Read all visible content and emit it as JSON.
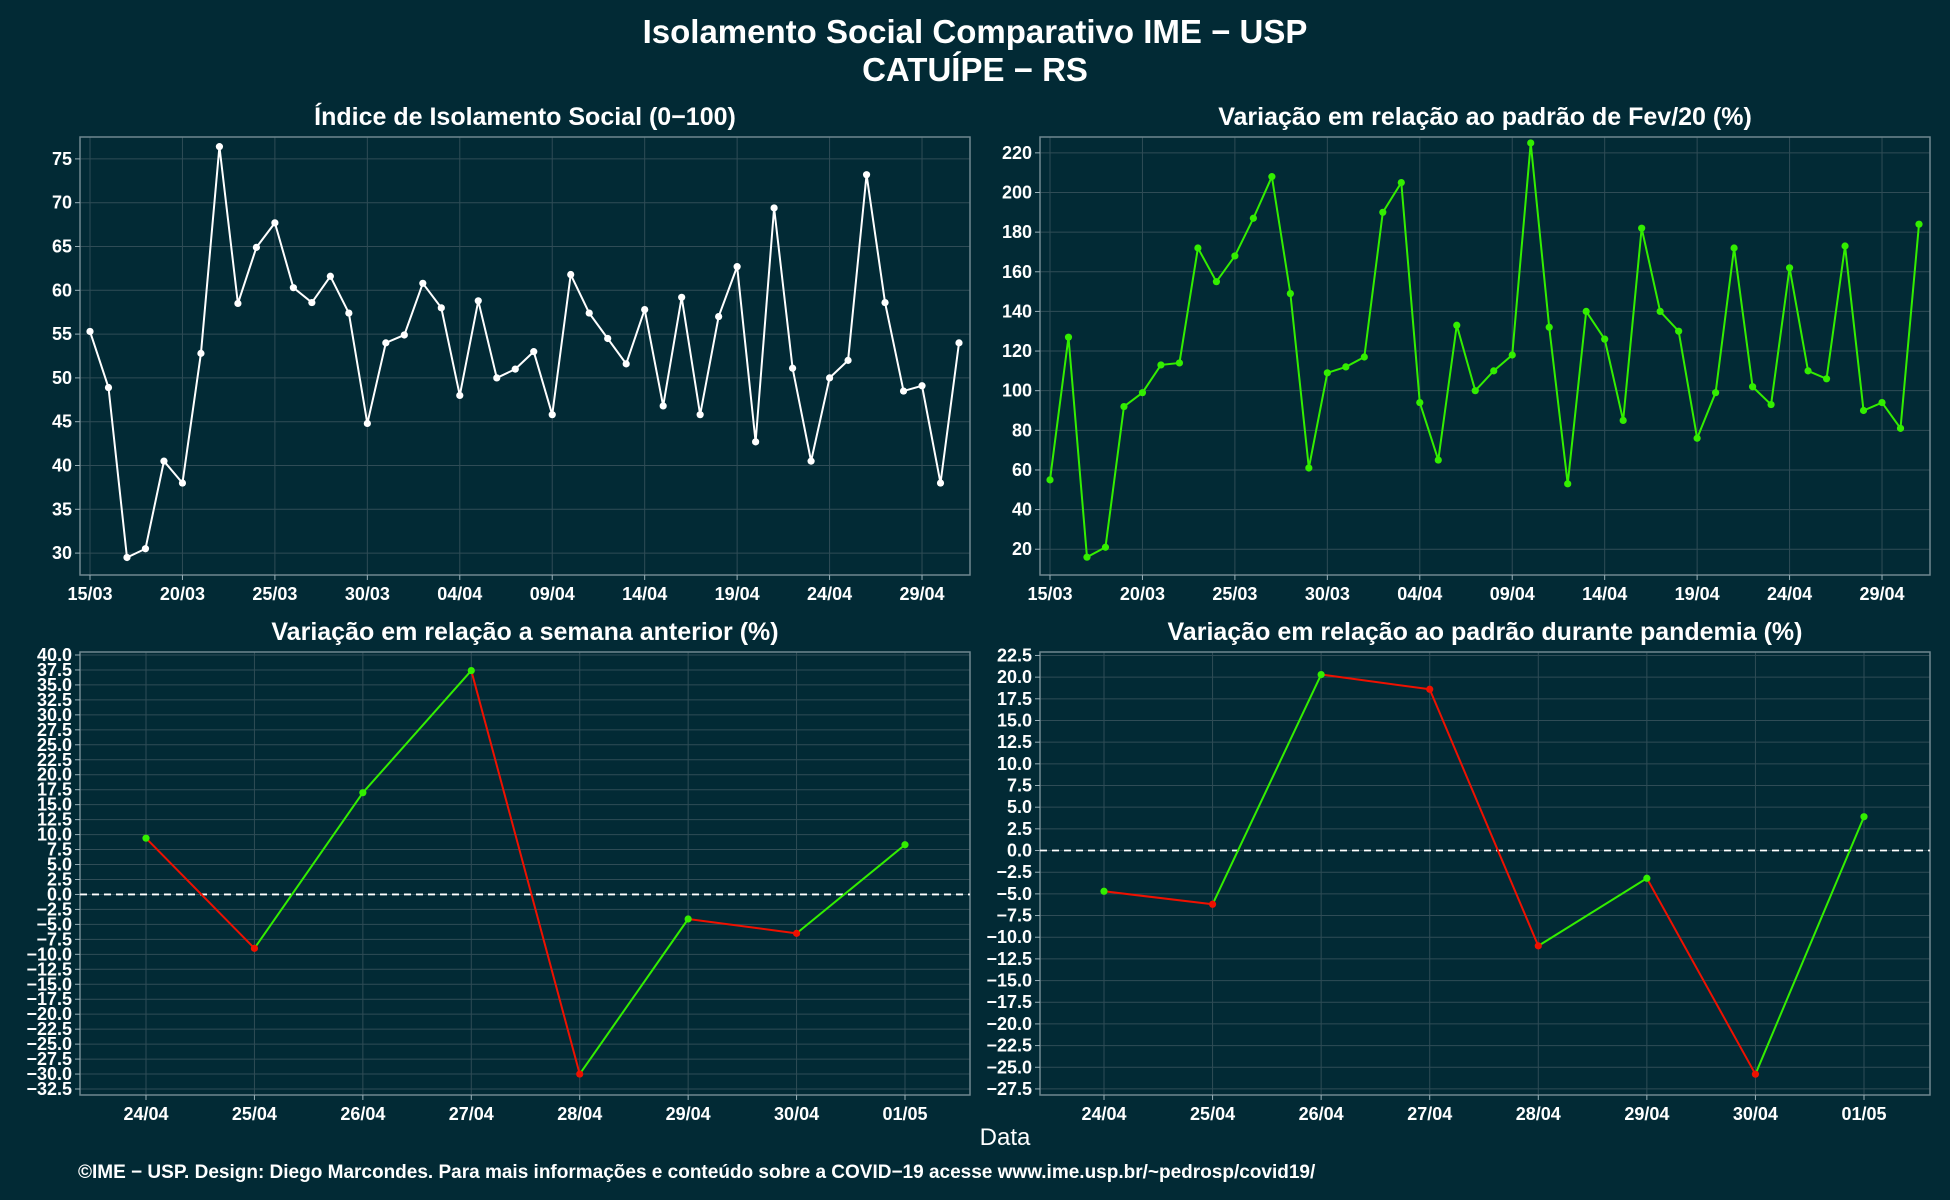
{
  "main_title": "Isolamento Social Comparativo IME − USP",
  "subtitle": "CATUÍPE − RS",
  "xlabel": "Data",
  "footer": "©IME − USP. Design: Diego Marcondes. Para mais informações e conteúdo sobre a COVID−19 acesse www.ime.usp.br/~pedrosp/covid19/",
  "colors": {
    "background": "#022a35",
    "white_line": "#ffffff",
    "positive": "#33ee00",
    "negative": "#ee1100",
    "zero_line": "#ffffff"
  },
  "chart_data": [
    {
      "id": "p1",
      "type": "line",
      "title": "Índice de Isolamento Social (0−100)",
      "x_start": "15/03",
      "x_tick_labels": [
        "15/03",
        "20/03",
        "25/03",
        "30/03",
        "04/04",
        "09/04",
        "14/04",
        "19/04",
        "24/04",
        "29/04"
      ],
      "y_ticks": [
        30,
        35,
        40,
        45,
        50,
        55,
        60,
        65,
        70,
        75
      ],
      "ylim": [
        27.5,
        77.5
      ],
      "values": [
        55.3,
        48.9,
        29.5,
        30.5,
        40.5,
        38.0,
        52.8,
        76.4,
        58.5,
        64.9,
        67.7,
        60.3,
        58.6,
        61.6,
        57.4,
        44.8,
        54.0,
        54.9,
        60.8,
        58.0,
        48.0,
        58.8,
        50.0,
        51.0,
        53.0,
        45.8,
        61.8,
        57.4,
        54.5,
        51.6,
        57.8,
        46.8,
        59.2,
        45.8,
        57.0,
        62.7,
        42.7,
        69.4,
        51.1,
        40.5,
        50.0,
        52.0,
        73.2,
        58.6,
        48.5,
        49.1,
        38.0,
        54.0
      ],
      "color": "#ffffff",
      "grid": true
    },
    {
      "id": "p2",
      "type": "line",
      "title": "Variação em relação ao padrão de Fev/20 (%)",
      "x_start": "15/03",
      "x_tick_labels": [
        "15/03",
        "20/03",
        "25/03",
        "30/03",
        "04/04",
        "09/04",
        "14/04",
        "19/04",
        "24/04",
        "29/04"
      ],
      "y_ticks": [
        20,
        40,
        60,
        80,
        100,
        120,
        140,
        160,
        180,
        200,
        220
      ],
      "ylim": [
        7,
        228
      ],
      "values": [
        55,
        127,
        16,
        21,
        92,
        99,
        113,
        114,
        172,
        155,
        168,
        187,
        208,
        149,
        61,
        109,
        112,
        117,
        190,
        205,
        94,
        65,
        133,
        100,
        110,
        118,
        225,
        132,
        53,
        140,
        126,
        85,
        182,
        140,
        130,
        76,
        99,
        172,
        102,
        93,
        162,
        110,
        106,
        173,
        90,
        94,
        81,
        184
      ],
      "color": "#33ee00",
      "grid": true
    },
    {
      "id": "p3",
      "type": "line",
      "title": "Variação em relação a semana anterior (%)",
      "categories": [
        "24/04",
        "25/04",
        "26/04",
        "27/04",
        "28/04",
        "29/04",
        "30/04",
        "01/05"
      ],
      "values": [
        9.4,
        -9.0,
        17.0,
        37.4,
        -30.0,
        -4.1,
        -6.5,
        8.3
      ],
      "y_tick_labels": [
        "40.0",
        "37.5",
        "35.0",
        "32.5",
        "30.0",
        "27.5",
        "25.0",
        "22.5",
        "20.0",
        "17.5",
        "15.0",
        "12.5",
        "10.0",
        "7.5",
        "5.0",
        "2.5",
        "0.0",
        "−2.5",
        "−5.0",
        "−7.5",
        "−10.0",
        "−12.5",
        "−15.0",
        "−17.5",
        "−20.0",
        "−22.5",
        "−25.0",
        "−27.5",
        "−30.0",
        "−32.5"
      ],
      "ylim": [
        -33.5,
        40.5
      ],
      "zero_line": true,
      "grid": true
    },
    {
      "id": "p4",
      "type": "line",
      "title": "Variação em relação ao padrão durante pandemia (%)",
      "categories": [
        "24/04",
        "25/04",
        "26/04",
        "27/04",
        "28/04",
        "29/04",
        "30/04",
        "01/05"
      ],
      "values": [
        -4.7,
        -6.2,
        20.3,
        18.6,
        -11.0,
        -3.2,
        -25.8,
        3.9
      ],
      "y_tick_labels": [
        "22.5",
        "20.0",
        "17.5",
        "15.0",
        "12.5",
        "10.0",
        "7.5",
        "5.0",
        "2.5",
        "0.0",
        "−2.5",
        "−5.0",
        "−7.5",
        "−10.0",
        "−12.5",
        "−15.0",
        "−17.5",
        "−20.0",
        "−22.5",
        "−25.0",
        "−27.5"
      ],
      "ylim": [
        -28.2,
        22.9
      ],
      "zero_line": true,
      "grid": true
    }
  ]
}
